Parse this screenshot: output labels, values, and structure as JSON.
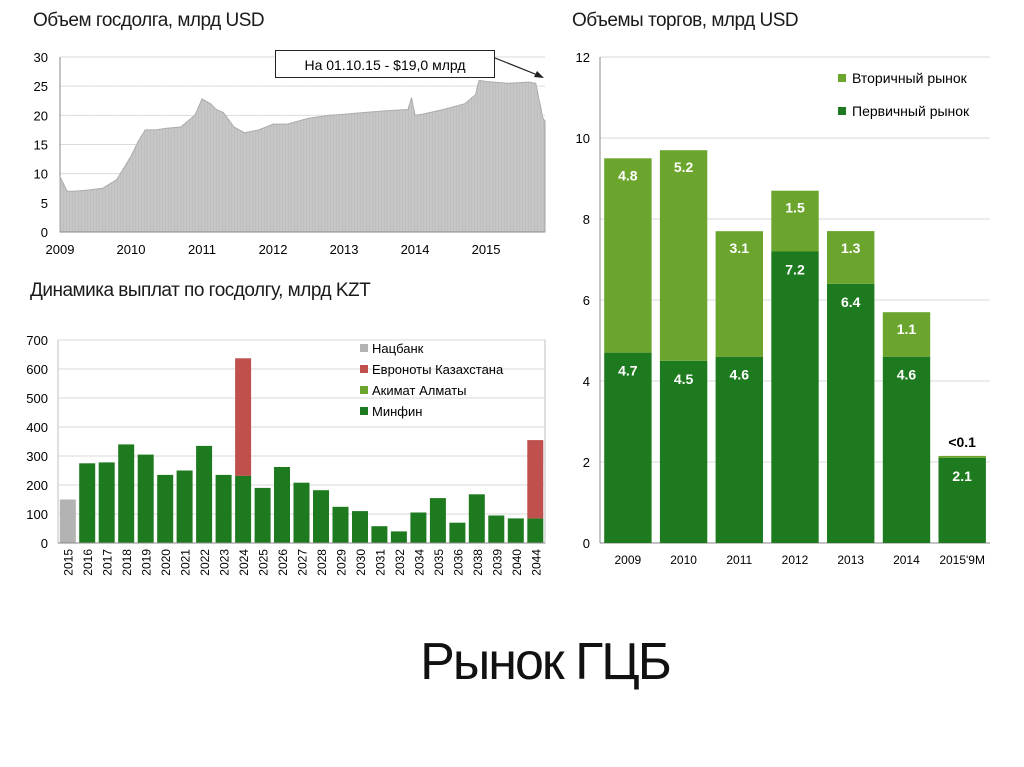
{
  "slide_title": "Рынок ГЦБ",
  "colors": {
    "gray": "#b3b3b3",
    "red": "#c0504d",
    "light_green": "#6ba52e",
    "dark_green": "#1e7a1e",
    "line_gray": "#a6a6a6"
  },
  "chart_data": [
    {
      "type": "area",
      "title": "Объем госдолга, млрд USD",
      "annotation": "На 01.10.15 - $19,0 млрд",
      "x_ticks": [
        "2009",
        "2010",
        "2011",
        "2012",
        "2013",
        "2014",
        "2015"
      ],
      "y_ticks": [
        "0",
        "5",
        "10",
        "15",
        "20",
        "25",
        "30"
      ],
      "ylim": [
        0,
        30
      ],
      "xlim": [
        2009.0,
        2015.83
      ],
      "x": [
        2009.0,
        2009.1,
        2009.2,
        2009.4,
        2009.6,
        2009.8,
        2010.0,
        2010.1,
        2010.2,
        2010.35,
        2010.5,
        2010.7,
        2010.9,
        2011.0,
        2011.12,
        2011.2,
        2011.3,
        2011.45,
        2011.6,
        2011.8,
        2012.0,
        2012.2,
        2012.5,
        2012.8,
        2013.0,
        2013.3,
        2013.6,
        2013.9,
        2013.95,
        2014.0,
        2014.1,
        2014.4,
        2014.7,
        2014.85,
        2014.9,
        2015.0,
        2015.3,
        2015.6,
        2015.7,
        2015.8,
        2015.83
      ],
      "values": [
        9.5,
        7.0,
        7.0,
        7.2,
        7.5,
        9.0,
        13.0,
        15.5,
        17.5,
        17.5,
        17.8,
        18.0,
        20.0,
        22.8,
        22.0,
        21.0,
        20.5,
        18.0,
        17.0,
        17.5,
        18.5,
        18.5,
        19.5,
        20.0,
        20.2,
        20.5,
        20.8,
        21.0,
        23.0,
        20.0,
        20.2,
        21.0,
        22.0,
        23.5,
        26.0,
        25.8,
        25.5,
        25.7,
        25.5,
        19.5,
        19.0
      ]
    },
    {
      "type": "bar",
      "stacked": true,
      "title": "Динамика выплат по госдолгу, млрд KZT",
      "categories": [
        "2015",
        "2016",
        "2017",
        "2018",
        "2019",
        "2020",
        "2021",
        "2022",
        "2023",
        "2024",
        "2025",
        "2026",
        "2027",
        "2028",
        "2029",
        "2030",
        "2031",
        "2032",
        "2034",
        "2035",
        "2036",
        "2038",
        "2039",
        "2040",
        "2044"
      ],
      "y_ticks": [
        "0",
        "100",
        "200",
        "300",
        "400",
        "500",
        "600",
        "700"
      ],
      "ylim": [
        0,
        700
      ],
      "legend_placement": "top-right",
      "series": [
        {
          "name": "Нацбанк",
          "color": "#b3b3b3",
          "values": [
            150,
            0,
            0,
            0,
            0,
            0,
            0,
            0,
            0,
            0,
            0,
            0,
            0,
            0,
            0,
            0,
            0,
            0,
            0,
            0,
            0,
            0,
            0,
            0,
            0
          ]
        },
        {
          "name": "Евроноты Казахстана",
          "color": "#c0504d",
          "values": [
            0,
            0,
            0,
            0,
            0,
            0,
            0,
            0,
            0,
            405,
            0,
            0,
            0,
            0,
            0,
            0,
            0,
            0,
            0,
            0,
            0,
            0,
            0,
            0,
            270
          ]
        },
        {
          "name": "Акимат Алматы",
          "color": "#6ba52e",
          "values": [
            0,
            0,
            0,
            0,
            0,
            0,
            0,
            0,
            0,
            0,
            0,
            0,
            0,
            0,
            0,
            0,
            0,
            0,
            0,
            0,
            0,
            0,
            0,
            0,
            0
          ]
        },
        {
          "name": "Минфин",
          "color": "#1e7a1e",
          "values": [
            0,
            275,
            278,
            340,
            305,
            235,
            250,
            335,
            235,
            232,
            190,
            262,
            208,
            182,
            125,
            110,
            58,
            40,
            105,
            155,
            70,
            168,
            95,
            85,
            85
          ]
        }
      ]
    },
    {
      "type": "bar",
      "stacked": true,
      "title": "Объемы торгов, млрд USD",
      "categories": [
        "2009",
        "2010",
        "2011",
        "2012",
        "2013",
        "2014",
        "2015'9M"
      ],
      "y_ticks": [
        "0",
        "2",
        "4",
        "6",
        "8",
        "10",
        "12"
      ],
      "ylim": [
        0,
        12
      ],
      "legend_placement": "top-right",
      "series": [
        {
          "name": "Первичный рынок",
          "color": "#1e7a1e",
          "values": [
            4.7,
            4.5,
            4.6,
            7.2,
            6.4,
            4.6,
            2.1
          ],
          "labels": [
            "4.7",
            "4.5",
            "4.6",
            "7.2",
            "6.4",
            "4.6",
            "2.1"
          ]
        },
        {
          "name": "Вторичный рынок",
          "color": "#6ba52e",
          "values": [
            4.8,
            5.2,
            3.1,
            1.5,
            1.3,
            1.1,
            0.05
          ],
          "labels": [
            "4.8",
            "5.2",
            "3.1",
            "1.5",
            "1.3",
            "1.1",
            "<0.1"
          ]
        }
      ]
    }
  ]
}
